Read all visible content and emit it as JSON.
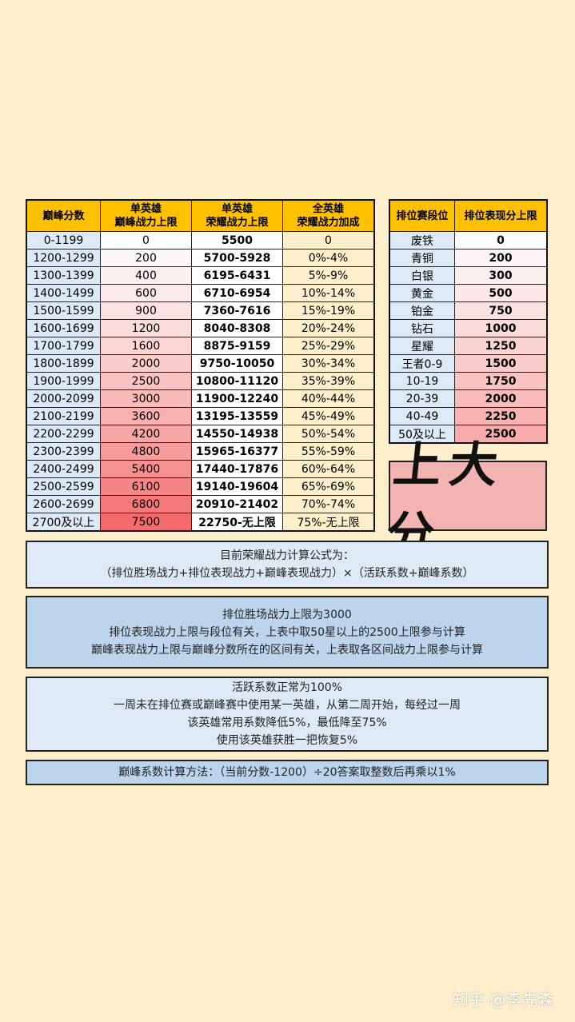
{
  "left_table": {
    "headers": [
      "巅峰分数",
      "单英雄\n巅峰战力上限",
      "单英雄\n荣耀战力上限",
      "全英雄\n荣耀战力加成"
    ],
    "rows": [
      {
        "score": "0-1199",
        "peak": "0",
        "glory": "5500",
        "bonus": "0",
        "color": "#ffffff"
      },
      {
        "score": "1200-1299",
        "peak": "200",
        "glory": "5700-5928",
        "bonus": "0%-4%",
        "color": "#fdf9f9"
      },
      {
        "score": "1300-1399",
        "peak": "400",
        "glory": "6195-6431",
        "bonus": "5%-9%",
        "color": "#fcf1f1"
      },
      {
        "score": "1400-1499",
        "peak": "600",
        "glory": "6710-6954",
        "bonus": "10%-14%",
        "color": "#fceaea"
      },
      {
        "score": "1500-1599",
        "peak": "900",
        "glory": "7360-7616",
        "bonus": "15%-19%",
        "color": "#fce3e3"
      },
      {
        "score": "1600-1699",
        "peak": "1200",
        "glory": "8040-8308",
        "bonus": "20%-24%",
        "color": "#fbdcdc"
      },
      {
        "score": "1700-1799",
        "peak": "1600",
        "glory": "8875-9159",
        "bonus": "25%-29%",
        "color": "#fbd4d4"
      },
      {
        "score": "1800-1899",
        "peak": "2000",
        "glory": "9750-10050",
        "bonus": "30%-34%",
        "color": "#fbcccc"
      },
      {
        "score": "1900-1999",
        "peak": "2500",
        "glory": "10800-11120",
        "bonus": "35%-39%",
        "color": "#fac3c3"
      },
      {
        "score": "2000-2099",
        "peak": "3000",
        "glory": "11900-12240",
        "bonus": "40%-44%",
        "color": "#f9baba"
      },
      {
        "score": "2100-2199",
        "peak": "3600",
        "glory": "13195-13559",
        "bonus": "45%-49%",
        "color": "#f9b0b0"
      },
      {
        "score": "2200-2299",
        "peak": "4200",
        "glory": "14550-14938",
        "bonus": "50%-54%",
        "color": "#f8a5a5"
      },
      {
        "score": "2300-2399",
        "peak": "4800",
        "glory": "15965-16377",
        "bonus": "55%-59%",
        "color": "#f79b9b"
      },
      {
        "score": "2400-2499",
        "peak": "5400",
        "glory": "17440-17876",
        "bonus": "60%-64%",
        "color": "#f79090"
      },
      {
        "score": "2500-2599",
        "peak": "6100",
        "glory": "19140-19604",
        "bonus": "65%-69%",
        "color": "#f68585"
      },
      {
        "score": "2600-2699",
        "peak": "6800",
        "glory": "20910-21402",
        "bonus": "70%-74%",
        "color": "#f57979"
      },
      {
        "score": "2700及以上",
        "peak": "7500",
        "glory": "22750-无上限",
        "bonus": "75%-无上限",
        "color": "#f46b6b"
      }
    ],
    "colors": {
      "score_bg": "#dde9f5",
      "glory_bg": "#ffffff",
      "bonus_bg": "#fdefcc"
    }
  },
  "right_table": {
    "headers": [
      "排位赛段位",
      "排位表现分上限"
    ],
    "rows": [
      {
        "rank": "废铁",
        "value": "0",
        "color": "#ffffff"
      },
      {
        "rank": "青铜",
        "value": "200",
        "color": "#fdf5f5"
      },
      {
        "rank": "白银",
        "value": "300",
        "color": "#fcefef"
      },
      {
        "rank": "黄金",
        "value": "500",
        "color": "#fce8e8"
      },
      {
        "rank": "铂金",
        "value": "750",
        "color": "#fbe2e2"
      },
      {
        "rank": "钻石",
        "value": "1000",
        "color": "#fbdada"
      },
      {
        "rank": "星耀",
        "value": "1250",
        "color": "#fad3d3"
      },
      {
        "rank": "王者0-9",
        "value": "1500",
        "color": "#facbcb"
      },
      {
        "rank": "10-19",
        "value": "1750",
        "color": "#f9c3c3"
      },
      {
        "rank": "20-39",
        "value": "2000",
        "color": "#f9bbbb"
      },
      {
        "rank": "40-49",
        "value": "2250",
        "color": "#f8b3b3"
      },
      {
        "rank": "50及以上",
        "value": "2500",
        "color": "#f8abab"
      }
    ],
    "colors": {
      "rank_bg": "#dde9f5"
    }
  },
  "sticker": {
    "text": "上大分"
  },
  "box1": {
    "line1": "目前荣耀战力计算公式为：",
    "line2": "（排位胜场战力+排位表现战力+巅峰表现战力）×（活跃系数+巅峰系数）"
  },
  "box2": {
    "line1": "排位胜场战力上限为3000",
    "line2": "排位表现战力上限与段位有关，上表中取50星以上的2500上限参与计算",
    "line3": "巅峰表现战力上限与巅峰分数所在的区间有关，上表取各区间战力上限参与计算"
  },
  "box3": {
    "line1": "活跃系数正常为100%",
    "line2": "一周未在排位赛或巅峰赛中使用某一英雄，从第二周开始，每经过一周",
    "line3": "该英雄常用系数降低5%，最低降至75%",
    "line4": "使用该英雄获胜一把恢复5%"
  },
  "box4": {
    "line1": "巅峰系数计算方法：（当前分数-1200）÷20答案取整数后再乘以1%"
  },
  "watermark": "知乎 @李先森"
}
